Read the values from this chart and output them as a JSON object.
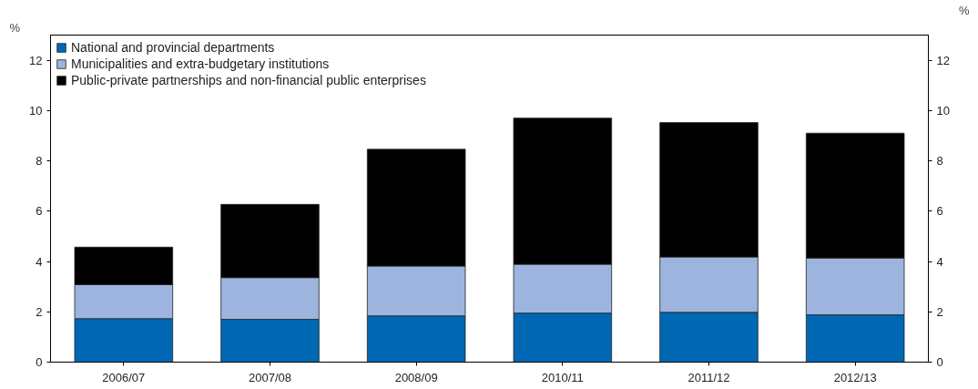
{
  "chart_data": {
    "type": "bar",
    "stacked": true,
    "ylabel": "%",
    "y2label": "%",
    "categories": [
      "2006/07",
      "2007/08",
      "2008/09",
      "2010/11",
      "2011/12",
      "2012/13"
    ],
    "series": [
      {
        "name": "National and provincial departments",
        "color": "#0068b3",
        "values": [
          1.73,
          1.7,
          1.84,
          1.95,
          1.98,
          1.88
        ]
      },
      {
        "name": "Municipalities and extra-budgetary institutions",
        "color": "#9db5de",
        "values": [
          1.35,
          1.66,
          1.98,
          1.94,
          2.2,
          2.26
        ]
      },
      {
        "name": "Public-private partnerships and non-financial public enterprises",
        "color": "#000000",
        "values": [
          1.49,
          2.91,
          4.64,
          5.81,
          5.34,
          4.96
        ]
      }
    ],
    "ylim": [
      0,
      13
    ],
    "yticks": [
      0,
      2,
      4,
      6,
      8,
      10,
      12
    ],
    "y2lim": [
      0,
      13
    ],
    "y2ticks": [
      0,
      2,
      4,
      6,
      8,
      10,
      12
    ],
    "grid": false,
    "legend": "top left"
  }
}
